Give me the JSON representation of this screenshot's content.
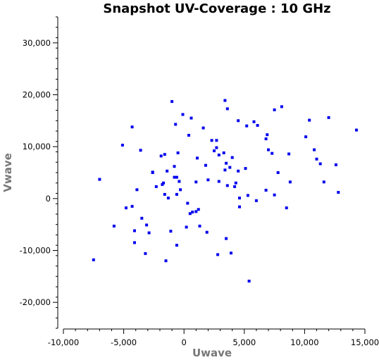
{
  "chart_data": {
    "type": "scatter",
    "title": "Snapshot UV-Coverage :  10 GHz",
    "xlabel": "Uwave",
    "ylabel": "Vwave",
    "xlim": [
      -10000,
      15000
    ],
    "ylim": [
      -25000,
      35000
    ],
    "x_ticks": [
      -10000,
      -5000,
      0,
      5000,
      10000,
      15000
    ],
    "x_tick_labels": [
      "-10,000",
      "-5,000",
      "0",
      "5,000",
      "10,000",
      "15,000"
    ],
    "y_ticks": [
      -20000,
      -10000,
      0,
      10000,
      20000,
      30000
    ],
    "y_tick_labels": [
      "-20,000",
      "-10,000",
      "0",
      "10,000",
      "20,000",
      "30,000"
    ],
    "grid": false,
    "marker_color": "#0000ee",
    "points": [
      [
        -7500,
        -11800
      ],
      [
        -7000,
        3700
      ],
      [
        -5800,
        -5300
      ],
      [
        -5100,
        10300
      ],
      [
        -4800,
        -1800
      ],
      [
        -4300,
        13800
      ],
      [
        -4300,
        -1500
      ],
      [
        -4100,
        -6200
      ],
      [
        -4100,
        -8500
      ],
      [
        -3900,
        1700
      ],
      [
        -3600,
        9300
      ],
      [
        -3500,
        -3800
      ],
      [
        -3200,
        -10600
      ],
      [
        -3100,
        -5100
      ],
      [
        -2900,
        -6600
      ],
      [
        -2600,
        5100
      ],
      [
        -2600,
        5000
      ],
      [
        -2300,
        2300
      ],
      [
        -1900,
        8200
      ],
      [
        -1800,
        2700
      ],
      [
        -1700,
        3000
      ],
      [
        -1600,
        8500
      ],
      [
        -1600,
        800
      ],
      [
        -1500,
        -12000
      ],
      [
        -1400,
        5300
      ],
      [
        -1300,
        100
      ],
      [
        -1100,
        -6300
      ],
      [
        -1000,
        18700
      ],
      [
        -800,
        6200
      ],
      [
        -800,
        4100
      ],
      [
        -700,
        14300
      ],
      [
        -600,
        4100
      ],
      [
        -600,
        -9000
      ],
      [
        -600,
        800
      ],
      [
        -500,
        8800
      ],
      [
        -400,
        3300
      ],
      [
        -300,
        1700
      ],
      [
        -100,
        16200
      ],
      [
        200,
        -5500
      ],
      [
        300,
        -900
      ],
      [
        400,
        12200
      ],
      [
        500,
        -2900
      ],
      [
        600,
        15500
      ],
      [
        700,
        -2600
      ],
      [
        1000,
        3200
      ],
      [
        1000,
        -2500
      ],
      [
        1100,
        7800
      ],
      [
        1200,
        -2100
      ],
      [
        1300,
        -5300
      ],
      [
        1600,
        13600
      ],
      [
        1800,
        6400
      ],
      [
        1900,
        -6500
      ],
      [
        2000,
        3600
      ],
      [
        2300,
        11200
      ],
      [
        2500,
        9200
      ],
      [
        2700,
        11200
      ],
      [
        2700,
        9800
      ],
      [
        2800,
        -10800
      ],
      [
        2900,
        8400
      ],
      [
        2900,
        3300
      ],
      [
        3300,
        8800
      ],
      [
        3400,
        18900
      ],
      [
        3400,
        5500
      ],
      [
        3500,
        -7700
      ],
      [
        3500,
        6800
      ],
      [
        3600,
        17300
      ],
      [
        3600,
        2500
      ],
      [
        3800,
        6000
      ],
      [
        3900,
        -10500
      ],
      [
        4000,
        7900
      ],
      [
        4200,
        2300
      ],
      [
        4300,
        3000
      ],
      [
        4500,
        5300
      ],
      [
        4500,
        15000
      ],
      [
        4600,
        100
      ],
      [
        4600,
        -1600
      ],
      [
        5100,
        5800
      ],
      [
        5200,
        14000
      ],
      [
        5300,
        600
      ],
      [
        5400,
        -15900
      ],
      [
        5800,
        14800
      ],
      [
        6000,
        -400
      ],
      [
        6100,
        14100
      ],
      [
        6800,
        1600
      ],
      [
        6800,
        11500
      ],
      [
        6900,
        12300
      ],
      [
        7000,
        9400
      ],
      [
        7300,
        8700
      ],
      [
        7500,
        700
      ],
      [
        7500,
        17100
      ],
      [
        7800,
        5000
      ],
      [
        8100,
        17700
      ],
      [
        8500,
        -1800
      ],
      [
        8700,
        8600
      ],
      [
        8800,
        3200
      ],
      [
        10100,
        11900
      ],
      [
        10400,
        15100
      ],
      [
        10800,
        9400
      ],
      [
        11000,
        7600
      ],
      [
        11300,
        6700
      ],
      [
        11600,
        3200
      ],
      [
        12000,
        15600
      ],
      [
        12600,
        6500
      ],
      [
        12800,
        1200
      ],
      [
        14300,
        13200
      ]
    ]
  }
}
